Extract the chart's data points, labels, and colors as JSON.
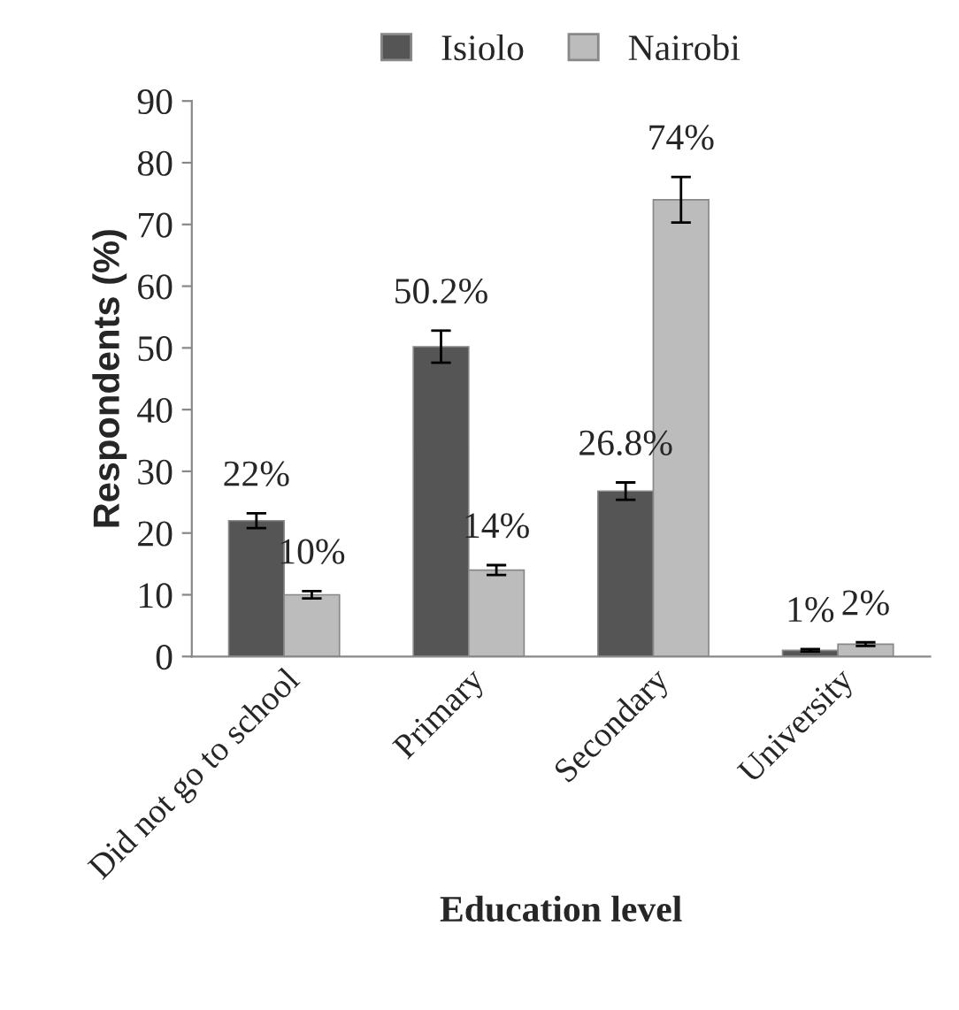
{
  "chart_data": {
    "type": "bar",
    "xlabel": "Education level",
    "ylabel": "Respondents (%)",
    "categories": [
      "Did not go to school",
      "Primary",
      "Secondary",
      "University"
    ],
    "series": [
      {
        "name": "Isiolo",
        "color": "#555555",
        "values": [
          22,
          50.2,
          26.8,
          1
        ],
        "errors": [
          1.2,
          2.6,
          1.4,
          0.2
        ],
        "value_labels": [
          "22%",
          "50.2%",
          "26.8%",
          "1%"
        ]
      },
      {
        "name": "Nairobi",
        "color": "#bcbcbc",
        "values": [
          10,
          14,
          74,
          2
        ],
        "errors": [
          0.6,
          0.8,
          3.7,
          0.3
        ],
        "value_labels": [
          "10%",
          "14%",
          "74%",
          "2%"
        ]
      }
    ],
    "ylim": [
      0,
      90
    ],
    "yticks": [
      0,
      10,
      20,
      30,
      40,
      50,
      60,
      70,
      80,
      90
    ],
    "grid": false,
    "legend": "top"
  }
}
